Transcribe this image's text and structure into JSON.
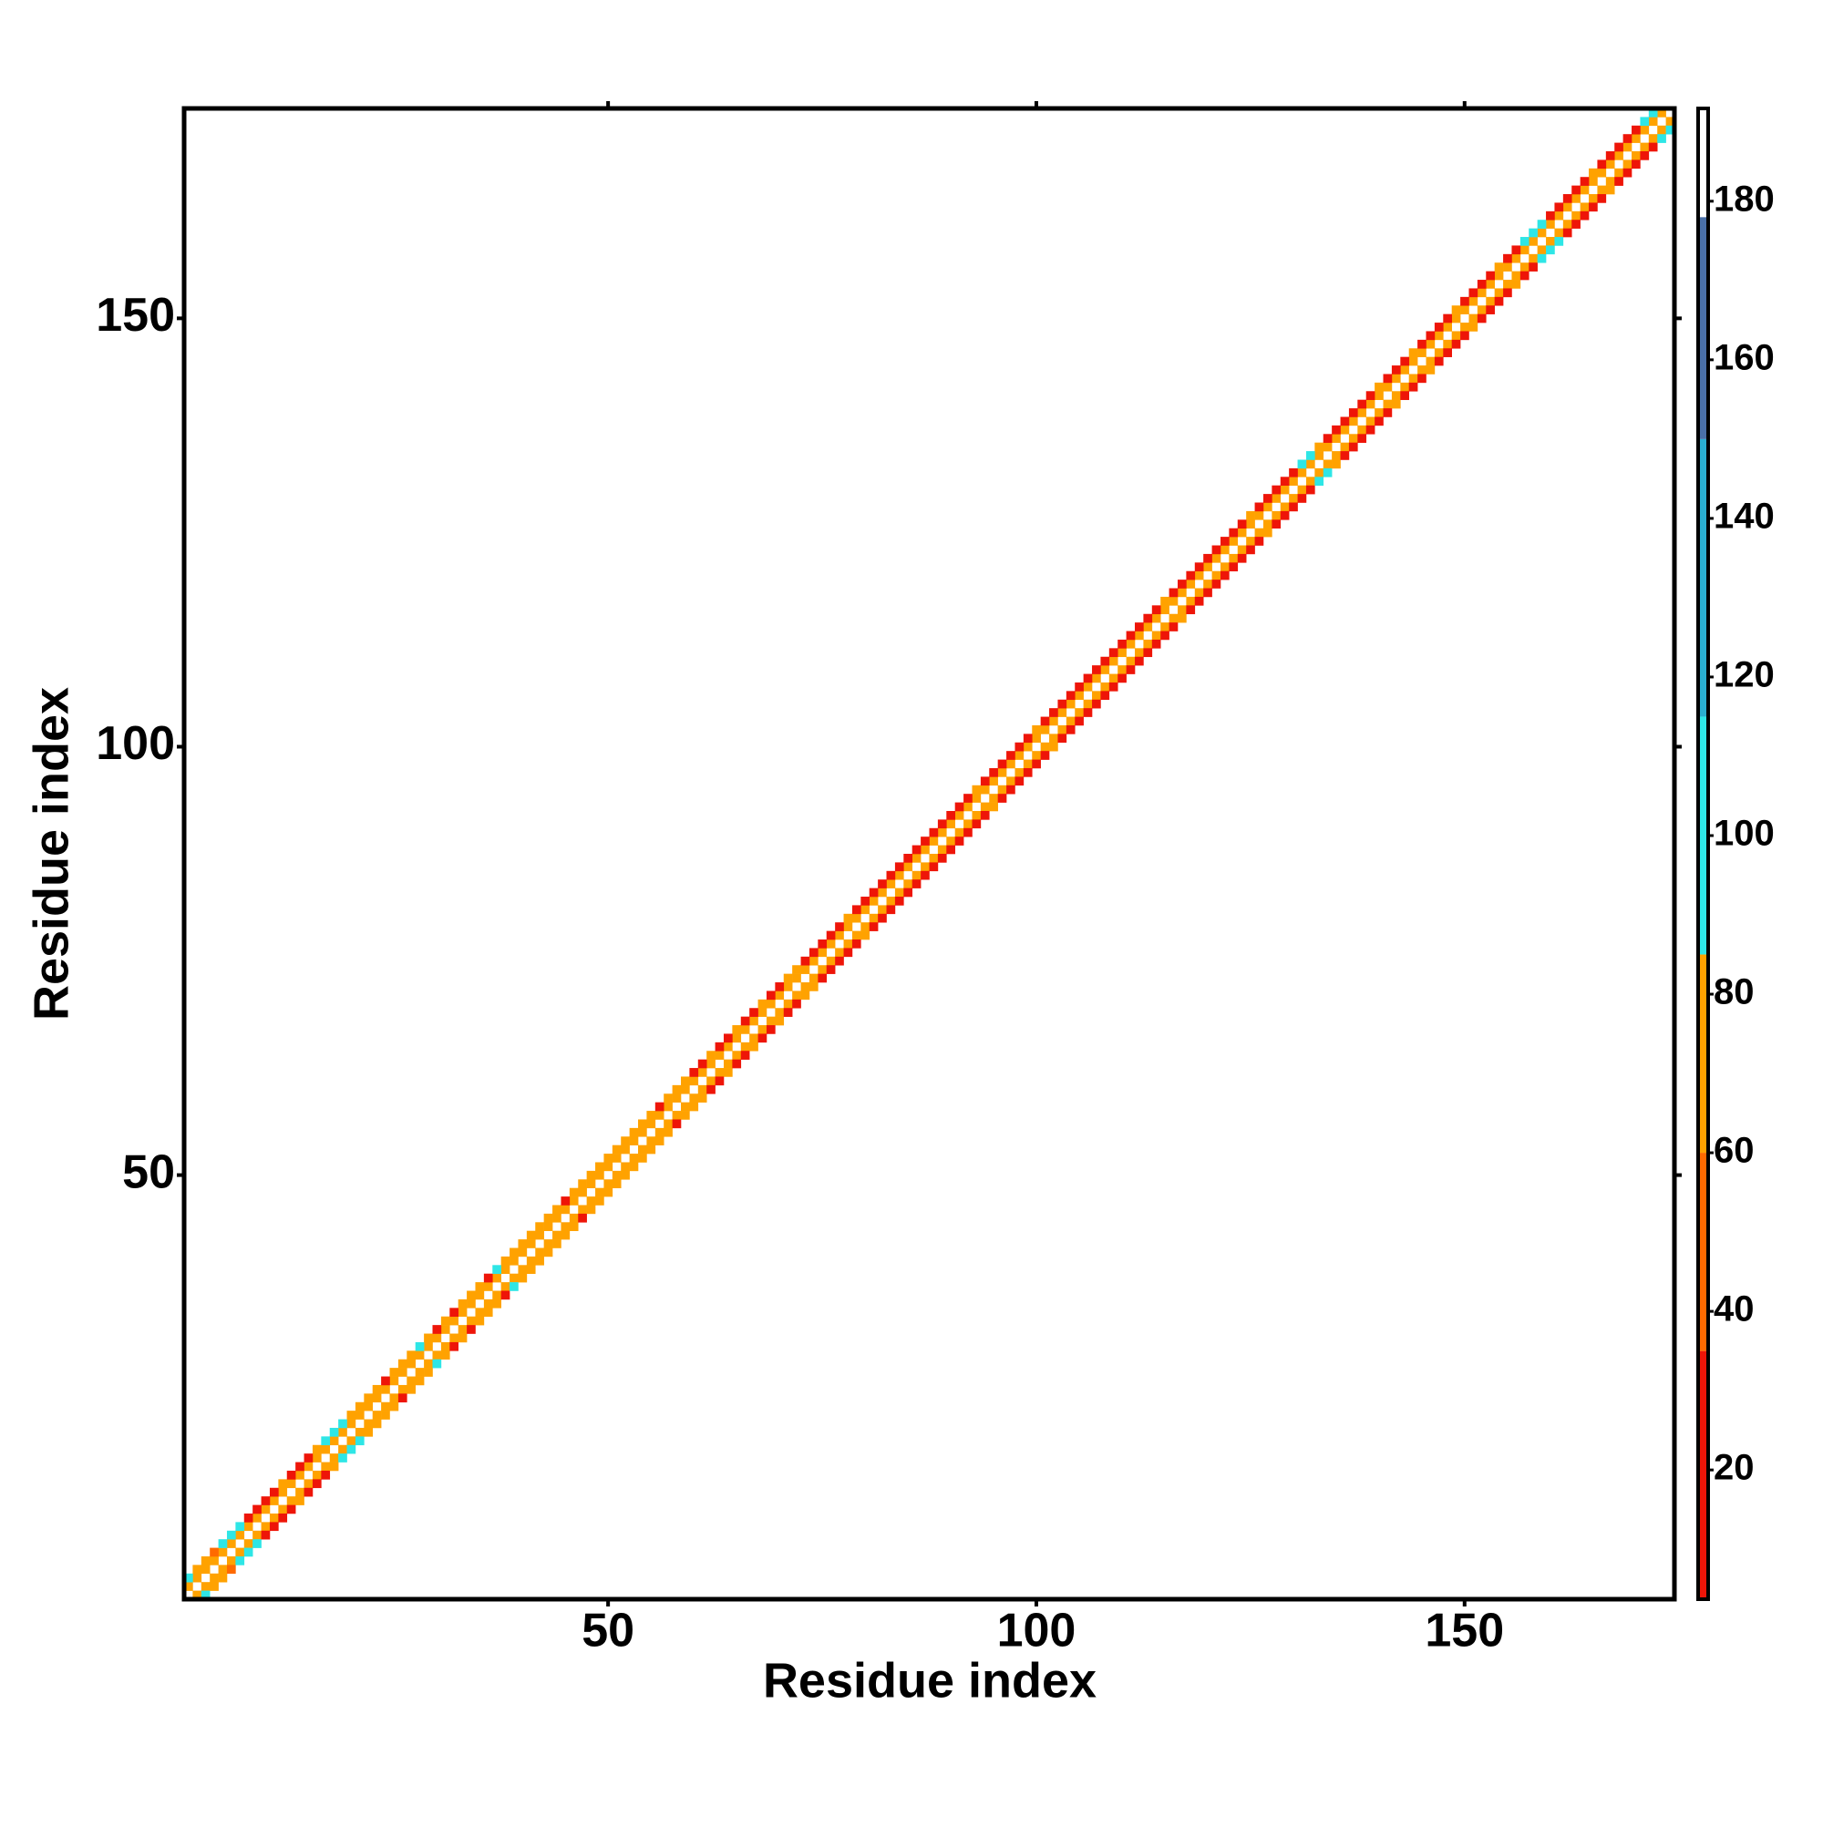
{
  "chart_data": {
    "type": "heatmap-band",
    "xlabel": "Residue index",
    "ylabel": "Residue index",
    "xlim": [
      0.5,
      174.5
    ],
    "ylim": [
      0.5,
      174.5
    ],
    "xticks": [
      50,
      100,
      150
    ],
    "yticks": [
      50,
      100,
      150
    ],
    "band": {
      "offsets": [
        0,
        1,
        2
      ],
      "values": [
        [
          185,
          185,
          185,
          185,
          185,
          185,
          185,
          185,
          185,
          185,
          185,
          185,
          185,
          185,
          185,
          185,
          185,
          185,
          185,
          185,
          185,
          185,
          185,
          185,
          185,
          185,
          185,
          185,
          185,
          185,
          185,
          185,
          185,
          185,
          185,
          185,
          185,
          185,
          185,
          185,
          185,
          185,
          185,
          185,
          185,
          185,
          185,
          185,
          185,
          185,
          185,
          185,
          185,
          185,
          185,
          185,
          185,
          185,
          185,
          185,
          185,
          185,
          185,
          185,
          185,
          185,
          185,
          185,
          185,
          185,
          185,
          185,
          185,
          185,
          185,
          185,
          185,
          185,
          185,
          185,
          185,
          185,
          185,
          185,
          185,
          185,
          185,
          185,
          185,
          185,
          185,
          185,
          185,
          185,
          185,
          185,
          185,
          185,
          185,
          185,
          185,
          185,
          185,
          185,
          185,
          185,
          185,
          185,
          185,
          185,
          185,
          185,
          185,
          185,
          185,
          185,
          185,
          185,
          185,
          185,
          185,
          185,
          185,
          185,
          185,
          185,
          185,
          185,
          185,
          185,
          185,
          185,
          185,
          185,
          185,
          185,
          185,
          185,
          185,
          185,
          185,
          185,
          185,
          185,
          185,
          185,
          185,
          185,
          185,
          185,
          185,
          185,
          185,
          185,
          185,
          185,
          185,
          185,
          185,
          185,
          185,
          185,
          185,
          185,
          185,
          185,
          185,
          185,
          185,
          185,
          185,
          185,
          185,
          185
        ],
        [
          72,
          70,
          74,
          68,
          71,
          73,
          69,
          75,
          70,
          72,
          71,
          74,
          70,
          68,
          73,
          72,
          69,
          71,
          75,
          70,
          72,
          73,
          70,
          68,
          74,
          71,
          72,
          69,
          73,
          70,
          72,
          70,
          74,
          68,
          71,
          73,
          69,
          75,
          70,
          72,
          71,
          74,
          70,
          68,
          73,
          72,
          69,
          71,
          75,
          70,
          72,
          73,
          70,
          68,
          74,
          71,
          72,
          69,
          73,
          70,
          72,
          70,
          74,
          68,
          71,
          73,
          69,
          75,
          70,
          72,
          71,
          74,
          70,
          68,
          73,
          72,
          69,
          71,
          75,
          70,
          72,
          73,
          70,
          68,
          74,
          71,
          72,
          69,
          73,
          70,
          72,
          70,
          74,
          68,
          71,
          73,
          69,
          75,
          70,
          72,
          71,
          74,
          70,
          68,
          73,
          72,
          69,
          71,
          75,
          70,
          72,
          73,
          70,
          68,
          74,
          71,
          72,
          69,
          73,
          70,
          72,
          70,
          74,
          68,
          71,
          73,
          69,
          75,
          70,
          72,
          71,
          74,
          70,
          68,
          73,
          72,
          69,
          71,
          75,
          70,
          72,
          73,
          70,
          68,
          74,
          71,
          72,
          69,
          73,
          70,
          72,
          70,
          74,
          68,
          71,
          73,
          69,
          75,
          70,
          72,
          71,
          74,
          70,
          68,
          73,
          72,
          69,
          71,
          75,
          70,
          72,
          73,
          70
        ],
        [
          98,
          70,
          72,
          45,
          100,
          102,
          99,
          25,
          28,
          30,
          26,
          72,
          30,
          24,
          27,
          68,
          100,
          98,
          101,
          72,
          70,
          68,
          74,
          30,
          72,
          70,
          66,
          100,
          72,
          28,
          70,
          25,
          72,
          68,
          74,
          30,
          101,
          72,
          70,
          68,
          72,
          70,
          74,
          68,
          30,
          72,
          70,
          71,
          69,
          73,
          72,
          70,
          68,
          74,
          71,
          30,
          72,
          69,
          73,
          28,
          26,
          72,
          25,
          28,
          70,
          27,
          25,
          72,
          28,
          26,
          72,
          75,
          26,
          30,
          28,
          25,
          27,
          72,
          26,
          29,
          25,
          28,
          26,
          30,
          27,
          25,
          28,
          26,
          29,
          27,
          25,
          28,
          72,
          26,
          30,
          27,
          25,
          28,
          26,
          72,
          30,
          25,
          28,
          26,
          29,
          27,
          25,
          28,
          26,
          30,
          27,
          25,
          28,
          26,
          72,
          29,
          25,
          28,
          26,
          30,
          27,
          25,
          28,
          26,
          72,
          30,
          25,
          28,
          26,
          29,
          101,
          100,
          72,
          27,
          28,
          26,
          25,
          30,
          27,
          72,
          28,
          26,
          29,
          72,
          25,
          27,
          30,
          26,
          72,
          28,
          25,
          27,
          26,
          72,
          30,
          25,
          100,
          102,
          99,
          28,
          26,
          30,
          27,
          25,
          72,
          28,
          26,
          30,
          27,
          25,
          100,
          98
        ]
      ]
    },
    "colorbar": {
      "lim": [
        3.7,
        191.7
      ],
      "ticks": [
        20,
        40,
        60,
        80,
        100,
        120,
        140,
        160,
        180
      ],
      "bins": [
        {
          "to": 35,
          "color": "#ee1508"
        },
        {
          "to": 60,
          "color": "#ff6a00"
        },
        {
          "to": 85,
          "color": "#ffa200"
        },
        {
          "to": 115,
          "color": "#2ee6e6"
        },
        {
          "to": 150,
          "color": "#2aaed0"
        },
        {
          "to": 178,
          "color": "#4a70a8"
        },
        {
          "to": 191.7,
          "color": "#ffffff"
        }
      ]
    }
  }
}
